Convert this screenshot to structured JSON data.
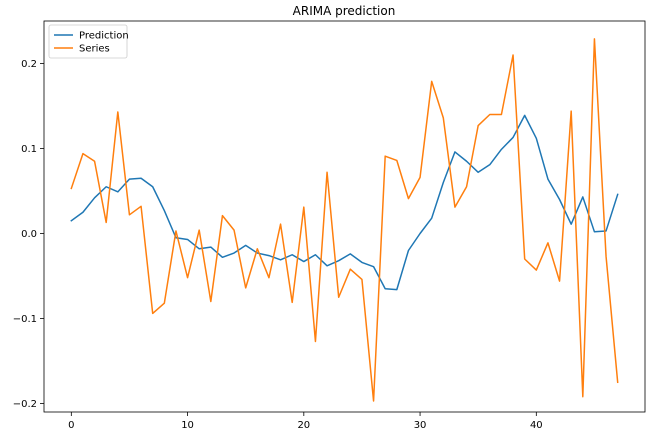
{
  "chart_data": {
    "type": "line",
    "title": "ARIMA prediction",
    "xlabel": "",
    "ylabel": "",
    "xlim": [
      -2.35,
      49.35
    ],
    "ylim": [
      -0.21,
      0.25
    ],
    "xticks": [
      0,
      10,
      20,
      30,
      40
    ],
    "yticks": [
      -0.2,
      -0.1,
      0.0,
      0.1,
      0.2
    ],
    "ytick_labels": [
      "−0.2",
      "−0.1",
      "0.0",
      "0.1",
      "0.2"
    ],
    "grid": false,
    "legend_position": "top-left",
    "series": [
      {
        "name": "Prediction",
        "color": "#1f77b4",
        "x": [
          0,
          1,
          2,
          3,
          4,
          5,
          6,
          7,
          8,
          9,
          10,
          11,
          12,
          13,
          14,
          15,
          16,
          17,
          18,
          19,
          20,
          21,
          22,
          23,
          24,
          25,
          26,
          27,
          28,
          29,
          30,
          31,
          32,
          33,
          34,
          35,
          36,
          37,
          38,
          39,
          40,
          41,
          42,
          43,
          44,
          45,
          46,
          47
        ],
        "values": [
          0.015,
          0.025,
          0.042,
          0.055,
          0.049,
          0.064,
          0.065,
          0.055,
          0.027,
          -0.005,
          -0.007,
          -0.018,
          -0.016,
          -0.028,
          -0.023,
          -0.014,
          -0.023,
          -0.026,
          -0.031,
          -0.025,
          -0.033,
          -0.025,
          -0.038,
          -0.032,
          -0.024,
          -0.034,
          -0.039,
          -0.065,
          -0.066,
          -0.02,
          0.0,
          0.018,
          0.06,
          0.096,
          0.085,
          0.072,
          0.081,
          0.099,
          0.113,
          0.139,
          0.112,
          0.064,
          0.04,
          0.011,
          0.043,
          0.002,
          0.003,
          0.046
        ]
      },
      {
        "name": "Series",
        "color": "#ff7f0e",
        "x": [
          0,
          1,
          2,
          3,
          4,
          5,
          6,
          7,
          8,
          9,
          10,
          11,
          12,
          13,
          14,
          15,
          16,
          17,
          18,
          19,
          20,
          21,
          22,
          23,
          24,
          25,
          26,
          27,
          28,
          29,
          30,
          31,
          32,
          33,
          34,
          35,
          36,
          37,
          38,
          39,
          40,
          41,
          42,
          43,
          44,
          45,
          46,
          47
        ],
        "values": [
          0.053,
          0.094,
          0.085,
          0.013,
          0.143,
          0.022,
          0.032,
          -0.094,
          -0.082,
          0.003,
          -0.052,
          0.004,
          -0.08,
          0.021,
          0.004,
          -0.064,
          -0.018,
          -0.052,
          0.011,
          -0.081,
          0.031,
          -0.127,
          0.072,
          -0.075,
          -0.042,
          -0.054,
          -0.197,
          0.091,
          0.086,
          0.041,
          0.066,
          0.179,
          0.136,
          0.031,
          0.055,
          0.127,
          0.14,
          0.14,
          0.21,
          -0.03,
          -0.043,
          -0.011,
          -0.056,
          0.144,
          -0.192,
          0.229,
          -0.027,
          -0.175
        ]
      }
    ]
  }
}
